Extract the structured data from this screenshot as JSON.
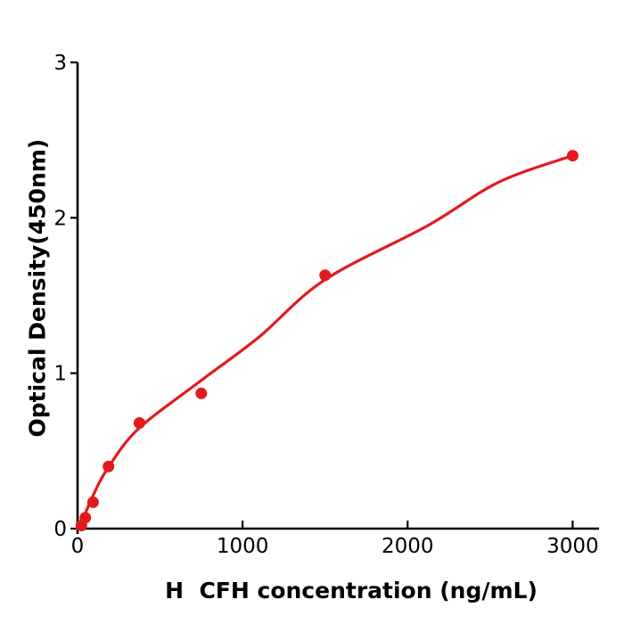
{
  "figure": {
    "background": "#ffffff",
    "axis_color": "#000000",
    "text_color": "#000000"
  },
  "chart_data": {
    "type": "scatter",
    "title": "",
    "xlabel": "H  CFH concentration (ng/mL)",
    "ylabel": "Optical Density(450nm)",
    "xlim": [
      0,
      3160
    ],
    "ylim": [
      0,
      3
    ],
    "xticks": [
      0,
      1000,
      2000,
      3000
    ],
    "yticks": [
      0,
      1,
      2,
      3
    ],
    "grid": false,
    "legend": null,
    "tick_direction": {
      "x": "in",
      "y": "out"
    },
    "series": [
      {
        "name": "standard-points",
        "type": "scatter",
        "marker": "circle",
        "color": "#e31a1c",
        "points": [
          {
            "x": 23.4,
            "y": 0.02
          },
          {
            "x": 46.9,
            "y": 0.07
          },
          {
            "x": 93.8,
            "y": 0.17
          },
          {
            "x": 187.5,
            "y": 0.4
          },
          {
            "x": 375,
            "y": 0.68
          },
          {
            "x": 750,
            "y": 0.87
          },
          {
            "x": 1500,
            "y": 1.63
          },
          {
            "x": 3000,
            "y": 2.4
          }
        ]
      },
      {
        "name": "fitted-curve",
        "type": "line",
        "color": "#e31a1c",
        "curve_points": [
          {
            "x": 0,
            "y": 0
          },
          {
            "x": 43,
            "y": 0.09
          },
          {
            "x": 97,
            "y": 0.22
          },
          {
            "x": 178,
            "y": 0.38
          },
          {
            "x": 367,
            "y": 0.64
          },
          {
            "x": 745,
            "y": 0.95
          },
          {
            "x": 1096,
            "y": 1.23
          },
          {
            "x": 1497,
            "y": 1.6
          },
          {
            "x": 2122,
            "y": 1.95
          },
          {
            "x": 2554,
            "y": 2.23
          },
          {
            "x": 3000,
            "y": 2.4
          }
        ]
      }
    ]
  }
}
